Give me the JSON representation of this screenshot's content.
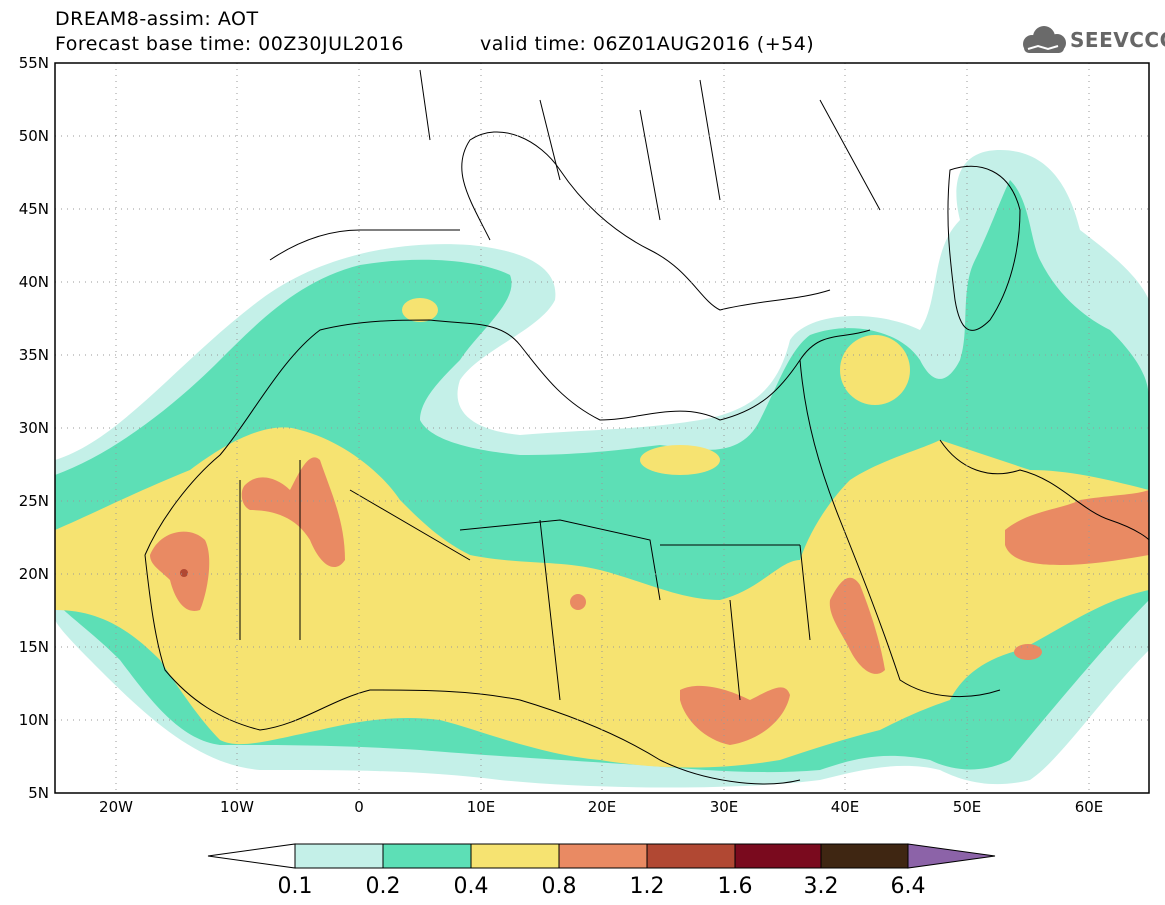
{
  "header": {
    "title_line1": "DREAM8-assim: AOT",
    "title_line2": "Forecast base time: 00Z30JUL2016",
    "valid_time": "valid time: 06Z01AUG2016 (+54)",
    "logo_text": "SEEVCCC"
  },
  "map": {
    "lat_labels": [
      "55N",
      "50N",
      "45N",
      "40N",
      "35N",
      "30N",
      "25N",
      "20N",
      "15N",
      "10N",
      "5N"
    ],
    "lon_labels": [
      "20W",
      "10W",
      "0",
      "10E",
      "20E",
      "30E",
      "40E",
      "50E",
      "60E"
    ],
    "lat_range": [
      5,
      55
    ],
    "lon_range": [
      -25,
      65
    ],
    "grid": "dotted",
    "field": "AOT"
  },
  "colorbar": {
    "levels": [
      "0.1",
      "0.2",
      "0.4",
      "0.8",
      "1.2",
      "1.6",
      "3.2",
      "6.4"
    ],
    "colors": [
      "#ffffff",
      "#c4f0e8",
      "#5ddfb6",
      "#f6e371",
      "#e98a63",
      "#b14833",
      "#7a0a1e",
      "#3f2612",
      "#8c63a8"
    ]
  }
}
